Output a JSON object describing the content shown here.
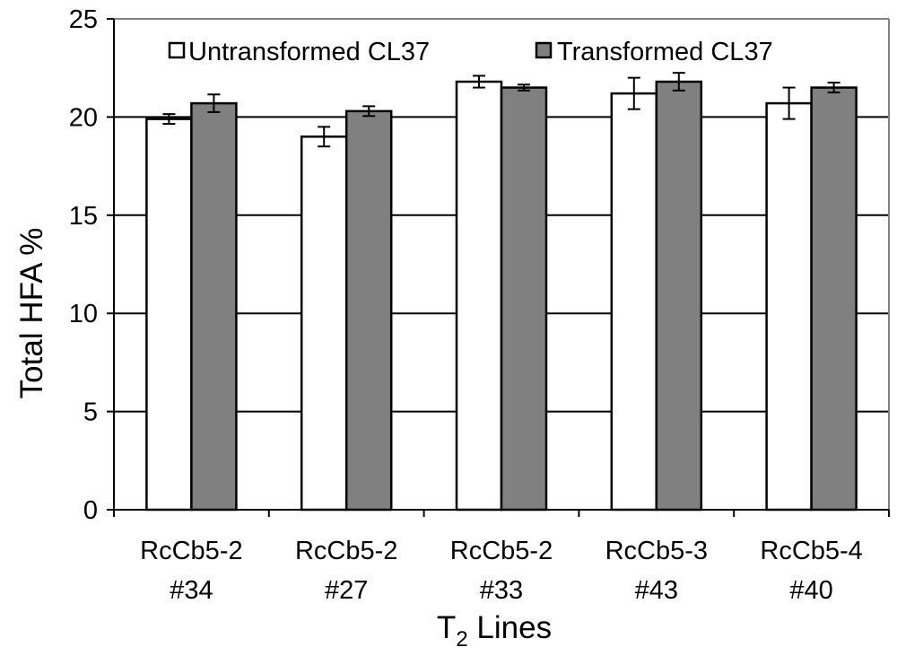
{
  "chart_data": {
    "type": "bar",
    "categories": [
      [
        "RcCb5-2",
        "#34"
      ],
      [
        "RcCb5-2",
        "#27"
      ],
      [
        "RcCb5-2",
        "#33"
      ],
      [
        "RcCb5-3",
        "#43"
      ],
      [
        "RcCb5-4",
        "#40"
      ]
    ],
    "series": [
      {
        "name": "Untransformed CL37",
        "color": "#ffffff",
        "values": [
          19.9,
          19.0,
          21.8,
          21.2,
          20.7
        ],
        "errors": [
          0.25,
          0.5,
          0.3,
          0.8,
          0.8
        ]
      },
      {
        "name": "Transformed CL37",
        "color": "#808080",
        "values": [
          20.7,
          20.3,
          21.5,
          21.8,
          21.5
        ],
        "errors": [
          0.45,
          0.25,
          0.15,
          0.45,
          0.25
        ]
      }
    ],
    "ylabel": "Total HFA %",
    "xlabel": {
      "prefix": "T",
      "subscript": "2",
      "suffix": " Lines"
    },
    "ylim": [
      0,
      25
    ],
    "yticks": [
      "0",
      "5",
      "10",
      "15",
      "20",
      "25"
    ],
    "grid": true,
    "legend_position": "top"
  }
}
